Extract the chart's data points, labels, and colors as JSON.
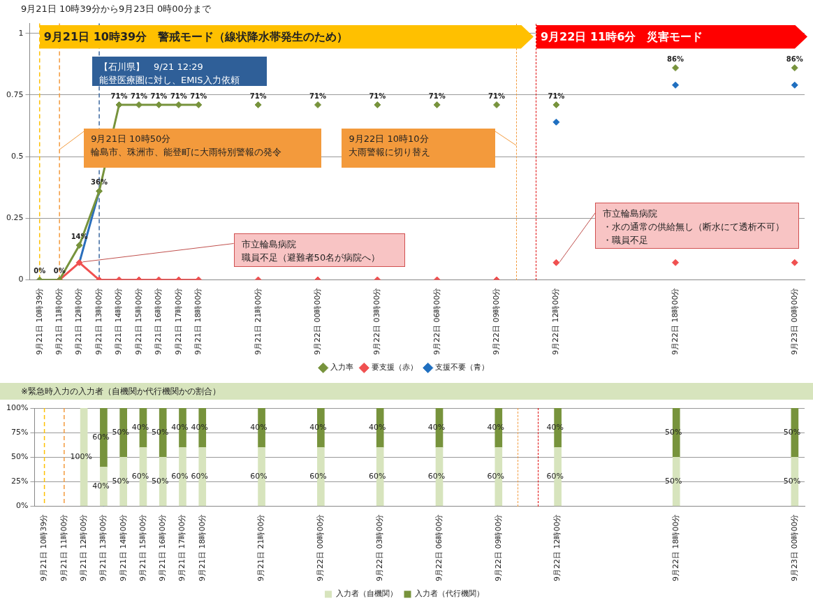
{
  "chart_data": [
    {
      "type": "scatter",
      "title": "9月21日 10時39分から9月23日 0時00分まで",
      "categories": [
        "9月21日 10時39分",
        "9月21日 11時00分",
        "9月21日 12時00分",
        "9月21日 13時00分",
        "9月21日 14時00分",
        "9月21日 15時00分",
        "9月21日 16時00分",
        "9月21日 17時00分",
        "9月21日 18時00分",
        null,
        null,
        "9月21日 21時00分",
        null,
        null,
        "9月22日 00時00分",
        null,
        null,
        "9月22日 03時00分",
        null,
        null,
        "9月22日 06時00分",
        null,
        null,
        "9月22日 09時00分",
        null,
        null,
        "9月22日 12時00分",
        null,
        null,
        null,
        null,
        null,
        "9月22日 18時00分",
        null,
        null,
        null,
        null,
        null,
        "9月23日 00時00分"
      ],
      "ylim": [
        0,
        1.04
      ],
      "yticks": [
        0,
        0.25,
        0.5,
        0.75,
        1
      ],
      "grid": "y",
      "legend": "bottom",
      "marker": "diamond",
      "series": [
        {
          "name": "入力率",
          "color": "#77933c",
          "values": [
            0,
            0,
            0.14,
            0.36,
            0.71,
            0.71,
            0.71,
            0.71,
            0.71,
            null,
            null,
            0.71,
            null,
            null,
            0.71,
            null,
            null,
            0.71,
            null,
            null,
            0.71,
            null,
            null,
            0.71,
            null,
            null,
            0.71,
            null,
            null,
            null,
            null,
            null,
            0.86,
            null,
            null,
            null,
            null,
            null,
            0.86
          ],
          "value_labels": [
            "0%",
            "0%",
            "14%",
            "36%",
            "71%",
            "71%",
            "71%",
            "71%",
            "71%",
            null,
            null,
            "71%",
            null,
            null,
            "71%",
            null,
            null,
            "71%",
            null,
            null,
            "71%",
            null,
            null,
            "71%",
            null,
            null,
            "71%",
            null,
            null,
            null,
            null,
            null,
            "86%",
            null,
            null,
            null,
            null,
            null,
            "86%"
          ]
        },
        {
          "name": "要支援（赤）",
          "color": "#f05050",
          "values": [
            null,
            0,
            0.07,
            0,
            0,
            0,
            0,
            0,
            0,
            null,
            null,
            0,
            null,
            null,
            0,
            null,
            null,
            0,
            null,
            null,
            0,
            null,
            null,
            0,
            null,
            null,
            0.07,
            null,
            null,
            null,
            null,
            null,
            0.07,
            null,
            null,
            null,
            null,
            null,
            0.07
          ]
        },
        {
          "name": "支援不要（青）",
          "color": "#1f6fc0",
          "values": [
            null,
            null,
            null,
            null,
            null,
            null,
            null,
            null,
            null,
            null,
            null,
            null,
            null,
            null,
            null,
            null,
            null,
            null,
            null,
            null,
            null,
            null,
            null,
            null,
            null,
            null,
            0.64,
            null,
            null,
            null,
            null,
            null,
            0.79,
            null,
            null,
            null,
            null,
            null,
            0.79
          ]
        },
        {
          "type": "line",
          "color": "#77933c",
          "marker": "none",
          "values": [
            0,
            0,
            0.14,
            0.36,
            0.71,
            0.71,
            0.71,
            0.71,
            0.71,
            null,
            null,
            null,
            null,
            null,
            null,
            null,
            null,
            null,
            null,
            null,
            null,
            null,
            null,
            null,
            null,
            null,
            null,
            null,
            null,
            null,
            null,
            null,
            null,
            null,
            null,
            null,
            null,
            null,
            null
          ]
        },
        {
          "type": "line",
          "color": "#f05050",
          "marker": "none",
          "values": [
            null,
            0,
            0.07,
            0,
            0,
            0,
            0,
            0,
            0,
            null,
            null,
            null,
            null,
            null,
            null,
            null,
            null,
            null,
            null,
            null,
            null,
            null,
            null,
            null,
            null,
            null,
            null,
            null,
            null,
            null,
            null,
            null,
            null,
            null,
            null,
            null,
            null,
            null,
            null
          ]
        },
        {
          "type": "line",
          "color": "#2a6ebb",
          "marker": "none",
          "values": [
            null,
            null,
            0.07,
            0.36,
            null,
            null,
            null,
            null,
            null,
            null,
            null,
            null,
            null,
            null,
            null,
            null,
            null,
            null,
            null,
            null,
            null,
            null,
            null,
            null,
            null,
            null,
            null,
            null,
            null,
            null,
            null,
            null,
            null,
            null,
            null,
            null,
            null,
            null,
            null
          ]
        }
      ],
      "ref_lines": [
        {
          "axis": "x",
          "value": "9月21日 10時39分",
          "color": "#ffc000",
          "line_style": "dashed"
        },
        {
          "axis": "x",
          "value": "9月21日 11時00分",
          "label": "9月21日 10時50分",
          "color": "#f39a3c",
          "line_style": "dashed"
        },
        {
          "axis": "x",
          "value": "9月21日 13時00分",
          "label": "【石川県】　9/21 12:29",
          "color": "#3a67a0",
          "line_style": "dashed"
        }
      ],
      "annotations": [
        "9月21日 10時39分　警戒モード（線状降水帯発生のため）",
        "9月22日 11時6分　災害モード",
        "輪島市、珠洲市、能登町に大雨特別警報の発令",
        "能登医療圏に対し、EMIS入力依頼",
        "9月22日 10時10分",
        "大雨警報に切り替え",
        {
          "text": "市立輪島病院",
          "x": "9月21日 12時00分",
          "y": 0.07
        },
        "職員不足（避難者50名が病院へ）",
        {
          "text": "市立輪島病院",
          "x": "9月22日 12時00分",
          "y": 0.07
        },
        "・水の通常の供給無し（断水にて透析不可）",
        "・職員不足"
      ]
    },
    {
      "type": "bar",
      "stacked": true,
      "title": "※緊急時入力の入力者（自機関か代行機関かの割合）",
      "categories": [
        "9月21日 10時39分",
        "9月21日 11時00分",
        "9月21日 12時00分",
        "9月21日 13時00分",
        "9月21日 14時00分",
        "9月21日 15時00分",
        "9月21日 16時00分",
        "9月21日 17時00分",
        "9月21日 18時00分",
        null,
        null,
        "9月21日 21時00分",
        null,
        null,
        "9月22日 00時00分",
        null,
        null,
        "9月22日 03時00分",
        null,
        null,
        "9月22日 06時00分",
        null,
        null,
        "9月22日 09時00分",
        null,
        null,
        "9月22日 12時00分",
        null,
        null,
        null,
        null,
        null,
        "9月22日 18時00分",
        null,
        null,
        null,
        null,
        null,
        "9月23日 00時00分"
      ],
      "ylim": [
        0,
        100
      ],
      "yticks": [
        {
          "value": 0,
          "label": "0%"
        },
        {
          "value": 25,
          "label": "25%"
        },
        {
          "value": 50,
          "label": "50%"
        },
        {
          "value": 75,
          "label": "75%"
        },
        {
          "value": 100,
          "label": "100%"
        }
      ],
      "grid": "y",
      "legend": "bottom",
      "series": [
        {
          "name": "入力者（自機関）",
          "color": "#d7e4bd",
          "values": [
            null,
            null,
            100,
            40,
            50,
            60,
            50,
            60,
            60,
            null,
            null,
            60,
            null,
            null,
            60,
            null,
            null,
            60,
            null,
            null,
            60,
            null,
            null,
            60,
            null,
            null,
            60,
            null,
            null,
            null,
            null,
            null,
            50,
            null,
            null,
            null,
            null,
            null,
            50
          ],
          "value_labels": [
            null,
            null,
            "100%",
            "40%",
            "50%",
            "60%",
            "50%",
            "60%",
            "60%",
            null,
            null,
            "60%",
            null,
            null,
            "60%",
            null,
            null,
            "60%",
            null,
            null,
            "60%",
            null,
            null,
            "60%",
            null,
            null,
            "60%",
            null,
            null,
            null,
            null,
            null,
            "50%",
            null,
            null,
            null,
            null,
            null,
            "50%"
          ]
        },
        {
          "name": "入力者（代行機関）",
          "color": "#77933c",
          "values": [
            null,
            null,
            0,
            60,
            50,
            40,
            50,
            40,
            40,
            null,
            null,
            40,
            null,
            null,
            40,
            null,
            null,
            40,
            null,
            null,
            40,
            null,
            null,
            40,
            null,
            null,
            40,
            null,
            null,
            null,
            null,
            null,
            50,
            null,
            null,
            null,
            null,
            null,
            50
          ],
          "value_labels": [
            null,
            null,
            null,
            "60%",
            "50%",
            "40%",
            "50%",
            "40%",
            "40%",
            null,
            null,
            "40%",
            null,
            null,
            "40%",
            null,
            null,
            "40%",
            null,
            null,
            "40%",
            null,
            null,
            "40%",
            null,
            null,
            "40%",
            null,
            null,
            null,
            null,
            null,
            "50%",
            null,
            null,
            null,
            null,
            null,
            "50%"
          ]
        }
      ],
      "ref_lines": [
        {
          "axis": "x",
          "value": "9月21日 10時39分",
          "color": "#ffc000",
          "line_style": "dashed"
        },
        {
          "axis": "x",
          "value": "9月21日 11時00分",
          "color": "#f39a3c",
          "line_style": "dashed"
        },
        {
          "axis": "x",
          "value": "9月21日 13時00分",
          "color": "#3a67a0",
          "line_style": "dashed"
        }
      ]
    }
  ]
}
